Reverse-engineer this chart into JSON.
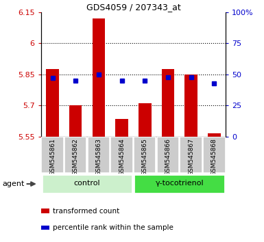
{
  "title": "GDS4059 / 207343_at",
  "samples": [
    "GSM545861",
    "GSM545862",
    "GSM545863",
    "GSM545864",
    "GSM545865",
    "GSM545866",
    "GSM545867",
    "GSM545868"
  ],
  "red_values": [
    5.875,
    5.7,
    6.12,
    5.635,
    5.71,
    5.875,
    5.85,
    5.565
  ],
  "blue_percentiles": [
    47,
    45,
    50,
    45,
    45,
    48,
    48,
    43
  ],
  "baseline": 5.55,
  "ylim_left": [
    5.55,
    6.15
  ],
  "ylim_right": [
    0,
    100
  ],
  "yticks_left": [
    5.55,
    5.7,
    5.85,
    6.0,
    6.15
  ],
  "yticks_right": [
    0,
    25,
    50,
    75,
    100
  ],
  "ytick_labels_left": [
    "5.55",
    "5.7",
    "5.85",
    "6",
    "6.15"
  ],
  "ytick_labels_right": [
    "0",
    "25",
    "50",
    "75",
    "100%"
  ],
  "gridlines": [
    5.7,
    5.85,
    6.0
  ],
  "groups": [
    {
      "label": "control",
      "samples": [
        0,
        1,
        2,
        3
      ],
      "color": "#ccf0cc"
    },
    {
      "label": "γ-tocotrienol",
      "samples": [
        4,
        5,
        6,
        7
      ],
      "color": "#44dd44"
    }
  ],
  "bar_color": "#cc0000",
  "dot_color": "#0000cc",
  "bar_width": 0.55,
  "agent_label": "agent",
  "legend_items": [
    {
      "color": "#cc0000",
      "label": "transformed count"
    },
    {
      "color": "#0000cc",
      "label": "percentile rank within the sample"
    }
  ],
  "title_color": "#000000",
  "left_tick_color": "#cc0000",
  "right_tick_color": "#0000cc",
  "sample_box_color": "#cccccc",
  "figsize": [
    3.85,
    3.54
  ],
  "dpi": 100
}
